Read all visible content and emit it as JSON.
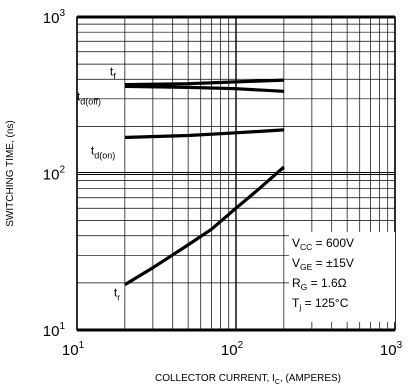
{
  "chart_data": {
    "type": "line",
    "x_scale": "log",
    "y_scale": "log",
    "xlim": [
      10,
      1000
    ],
    "ylim": [
      10,
      1000
    ],
    "grid": true,
    "xlabel": {
      "text": "COLLECTOR CURRENT, I",
      "sub": "C",
      "suffix": ", (AMPERES)"
    },
    "ylabel": "SWITCHING TIME, (ns)",
    "x_ticks": [
      {
        "value": 10,
        "base": "10",
        "exp": "1"
      },
      {
        "value": 100,
        "base": "10",
        "exp": "2"
      },
      {
        "value": 1000,
        "base": "10",
        "exp": "3"
      }
    ],
    "y_ticks": [
      {
        "value": 10,
        "base": "10",
        "exp": "1"
      },
      {
        "value": 100,
        "base": "10",
        "exp": "2"
      },
      {
        "value": 1000,
        "base": "10",
        "exp": "3"
      }
    ],
    "series": [
      {
        "name": "t",
        "sub": "f",
        "x": [
          20,
          50,
          100,
          200
        ],
        "y": [
          370,
          375,
          385,
          395
        ]
      },
      {
        "name": "t",
        "sub": "d(off)",
        "x": [
          20,
          50,
          100,
          200
        ],
        "y": [
          360,
          355,
          348,
          335
        ]
      },
      {
        "name": "t",
        "sub": "d(on)",
        "x": [
          20,
          50,
          100,
          200
        ],
        "y": [
          170,
          175,
          182,
          190
        ]
      },
      {
        "name": "t",
        "sub": "r",
        "x": [
          20,
          30,
          50,
          70,
          100,
          140,
          200
        ],
        "y": [
          19.5,
          25,
          35,
          44,
          60,
          80,
          110
        ]
      }
    ],
    "conditions": [
      {
        "var": "V",
        "sub": "CC",
        "rest": " = 600V"
      },
      {
        "var": "V",
        "sub": "GE",
        "rest": " = ±15V"
      },
      {
        "var": "R",
        "sub": "G",
        "rest": " = 1.6Ω"
      },
      {
        "var": "T",
        "sub": "j",
        "rest": " = 125°C"
      }
    ]
  }
}
